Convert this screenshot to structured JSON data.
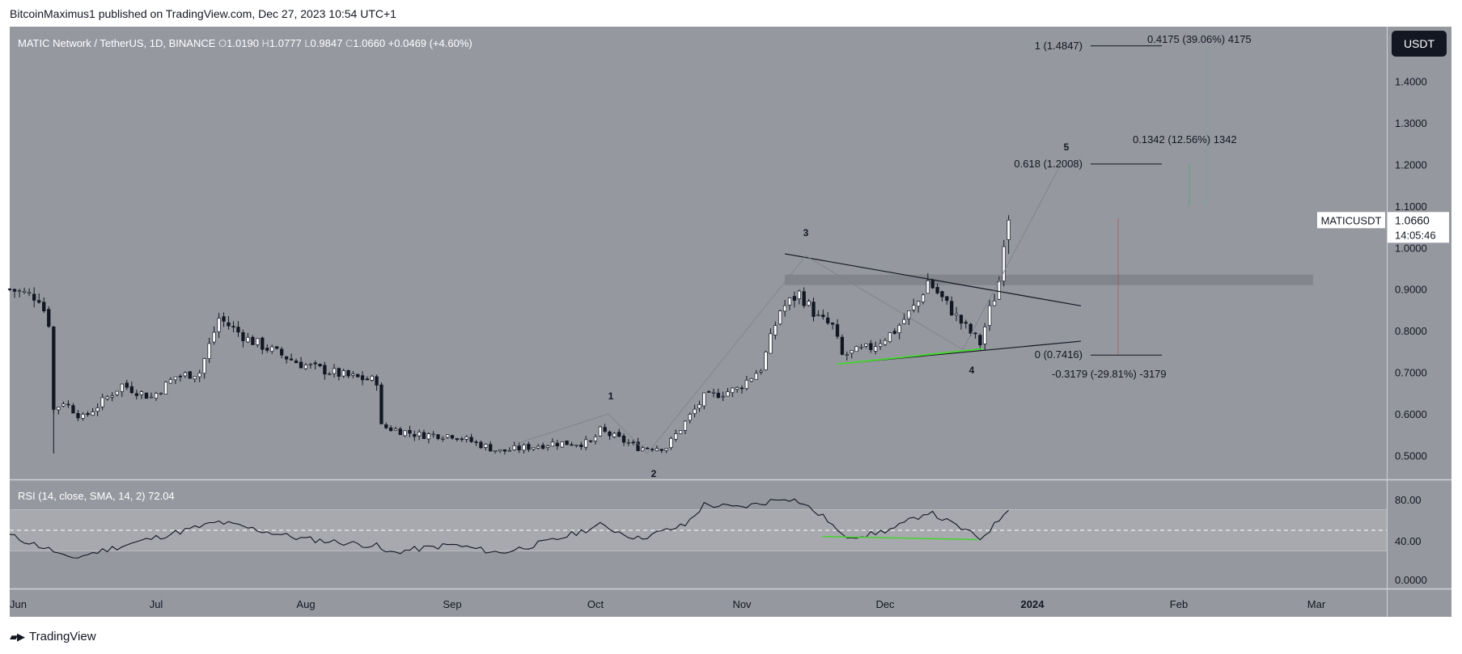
{
  "header": {
    "published_line": "BitcoinMaximus1 published on TradingView.com, Dec 27, 2023 10:54 UTC+1"
  },
  "footer": {
    "brand": "TradingView",
    "logo_icon": "tradingview-logo-icon"
  },
  "legend": {
    "symbol_line": "MATIC Network / TetherUS, 1D, BINANCE",
    "ohlc": [
      {
        "key": "O",
        "value": "1.0190"
      },
      {
        "key": "H",
        "value": "1.0777"
      },
      {
        "key": "L",
        "value": "0.9847"
      },
      {
        "key": "C",
        "value": "1.0660"
      }
    ],
    "change": "+0.0469 (+4.60%)"
  },
  "currency_button": "USDT",
  "price_label": {
    "symbol": "MATICUSDT",
    "price": "1.0660",
    "countdown": "14:05:46"
  },
  "rsi": {
    "title": "RSI (14, close, SMA, 14, 2)",
    "value": "72.04",
    "ticks": [
      "80.00",
      "40.00",
      "0.0000"
    ]
  },
  "annotations": {
    "fib_1": "1 (1.4847)",
    "fib_0618": "0.618 (1.2008)",
    "fib_0": "0 (0.7416)",
    "measure_up_top": "0.4175 (39.06%) 4175",
    "measure_up_mid": "0.1342 (12.56%) 1342",
    "measure_down": "-0.3179 (-29.81%) -3179",
    "wave_labels": [
      "1",
      "2",
      "3",
      "4",
      "5"
    ]
  },
  "colors": {
    "background": "#95989f",
    "rsi_band": "#a7a9ae",
    "candle_up": "#ffffff",
    "candle_down": "#131722",
    "support_line": "#4cd137",
    "resistance_zone": "#80838a"
  },
  "chart_data": {
    "type": "candlestick",
    "title": "MATIC Network / TetherUS, 1D, BINANCE",
    "x_ticks": [
      "Jun",
      "Jul",
      "Aug",
      "Sep",
      "Oct",
      "Nov",
      "Dec",
      "2024",
      "Feb",
      "Mar"
    ],
    "y_ticks": [
      "1.4000",
      "1.3000",
      "1.2000",
      "1.1000",
      "1.0000",
      "0.9000",
      "0.8000",
      "0.7000",
      "0.6000",
      "0.5000"
    ],
    "ylim": [
      0.44,
      1.54
    ],
    "price_anchors": [
      [
        "2023-06-01",
        0.9
      ],
      [
        "2023-06-04",
        0.89
      ],
      [
        "2023-06-07",
        0.88
      ],
      [
        "2023-06-09",
        0.82
      ],
      [
        "2023-06-10",
        0.61
      ],
      [
        "2023-06-12",
        0.63
      ],
      [
        "2023-06-16",
        0.59
      ],
      [
        "2023-06-20",
        0.63
      ],
      [
        "2023-06-24",
        0.67
      ],
      [
        "2023-06-30",
        0.64
      ],
      [
        "2023-07-05",
        0.69
      ],
      [
        "2023-07-10",
        0.7
      ],
      [
        "2023-07-14",
        0.83
      ],
      [
        "2023-07-20",
        0.78
      ],
      [
        "2023-07-31",
        0.72
      ],
      [
        "2023-08-10",
        0.69
      ],
      [
        "2023-08-16",
        0.68
      ],
      [
        "2023-08-17",
        0.57
      ],
      [
        "2023-08-25",
        0.55
      ],
      [
        "2023-09-01",
        0.55
      ],
      [
        "2023-09-11",
        0.51
      ],
      [
        "2023-09-22",
        0.53
      ],
      [
        "2023-09-30",
        0.53
      ],
      [
        "2023-10-02",
        0.56
      ],
      [
        "2023-10-10",
        0.52
      ],
      [
        "2023-10-16",
        0.52
      ],
      [
        "2023-10-20",
        0.58
      ],
      [
        "2023-10-24",
        0.64
      ],
      [
        "2023-10-31",
        0.66
      ],
      [
        "2023-11-05",
        0.71
      ],
      [
        "2023-11-09",
        0.85
      ],
      [
        "2023-11-13",
        0.89
      ],
      [
        "2023-11-17",
        0.83
      ],
      [
        "2023-11-20",
        0.81
      ],
      [
        "2023-11-22",
        0.74
      ],
      [
        "2023-11-28",
        0.76
      ],
      [
        "2023-12-03",
        0.8
      ],
      [
        "2023-12-08",
        0.87
      ],
      [
        "2023-12-10",
        0.92
      ],
      [
        "2023-12-17",
        0.82
      ],
      [
        "2023-12-21",
        0.77
      ],
      [
        "2023-12-23",
        0.85
      ],
      [
        "2023-12-24",
        0.88
      ],
      [
        "2023-12-25",
        0.92
      ],
      [
        "2023-12-26",
        1.02
      ],
      [
        "2023-12-27",
        1.066
      ]
    ],
    "rsi_anchors": [
      [
        "2023-06-01",
        45
      ],
      [
        "2023-06-10",
        30
      ],
      [
        "2023-06-13",
        22
      ],
      [
        "2023-06-24",
        35
      ],
      [
        "2023-07-14",
        58
      ],
      [
        "2023-07-31",
        42
      ],
      [
        "2023-08-16",
        35
      ],
      [
        "2023-08-18",
        28
      ],
      [
        "2023-08-25",
        32
      ],
      [
        "2023-09-01",
        36
      ],
      [
        "2023-09-11",
        28
      ],
      [
        "2023-09-22",
        40
      ],
      [
        "2023-10-02",
        55
      ],
      [
        "2023-10-10",
        42
      ],
      [
        "2023-10-20",
        55
      ],
      [
        "2023-10-24",
        75
      ],
      [
        "2023-10-31",
        72
      ],
      [
        "2023-11-05",
        76
      ],
      [
        "2023-11-10",
        82
      ],
      [
        "2023-11-13",
        78
      ],
      [
        "2023-11-19",
        60
      ],
      [
        "2023-11-22",
        44
      ],
      [
        "2023-11-28",
        46
      ],
      [
        "2023-12-03",
        52
      ],
      [
        "2023-12-10",
        68
      ],
      [
        "2023-12-17",
        52
      ],
      [
        "2023-12-21",
        42
      ],
      [
        "2023-12-24",
        55
      ],
      [
        "2023-12-27",
        72
      ]
    ]
  }
}
